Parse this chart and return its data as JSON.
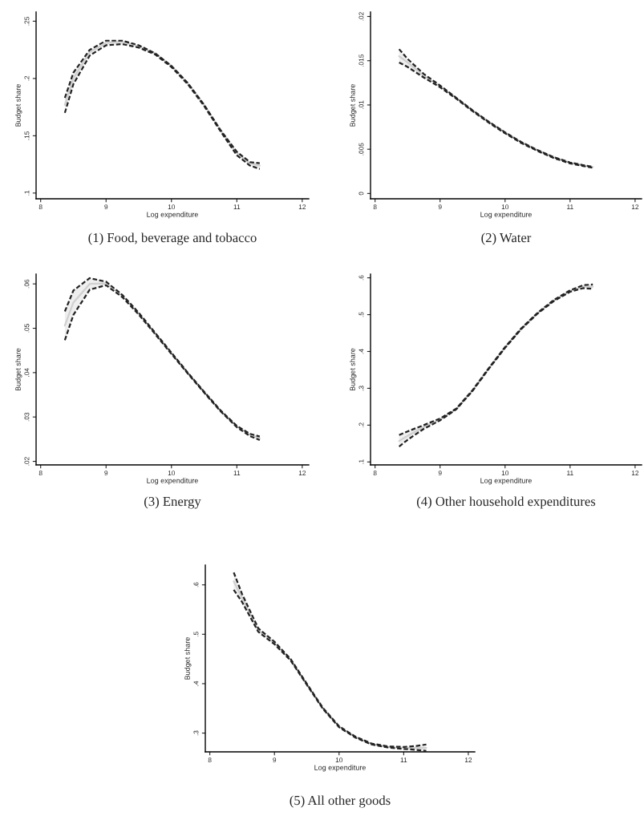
{
  "chart_data": [
    {
      "type": "line",
      "title": "(1) Food, beverage and tobacco",
      "xlabel": "Log expenditure",
      "ylabel": "Budget share",
      "xlim": [
        7.93,
        12.1
      ],
      "xticks": [
        8,
        9,
        10,
        11,
        12
      ],
      "ylim": [
        0.095,
        0.258
      ],
      "yticks": [
        {
          "value": 0.1,
          "label": ".1"
        },
        {
          "value": 0.15,
          "label": ".15"
        },
        {
          "value": 0.2,
          "label": ".2"
        },
        {
          "value": 0.25,
          "label": ".25"
        }
      ],
      "grid": false,
      "legend": false,
      "marker": "none",
      "x": [
        8.37,
        8.5,
        8.75,
        9,
        9.25,
        9.5,
        9.75,
        10,
        10.25,
        10.5,
        10.75,
        11,
        11.2,
        11.35
      ],
      "series": [
        {
          "color": "#d0d0d0",
          "line_style": "solid",
          "values": [
            0.177,
            0.2,
            0.223,
            0.231,
            0.232,
            0.228,
            0.222,
            0.211,
            0.196,
            0.177,
            0.155,
            0.135,
            0.126,
            0.124
          ],
          "lower": [
            0.17,
            0.195,
            0.22,
            0.229,
            0.23,
            0.227,
            0.221,
            0.21,
            0.195,
            0.176,
            0.154,
            0.133,
            0.124,
            0.121
          ],
          "upper": [
            0.183,
            0.205,
            0.225,
            0.233,
            0.233,
            0.229,
            0.222,
            0.211,
            0.196,
            0.177,
            0.155,
            0.136,
            0.127,
            0.126
          ]
        },
        {
          "color": "#222222",
          "line_style": "dashed",
          "values": [
            0.17,
            0.195,
            0.22,
            0.229,
            0.23,
            0.227,
            0.221,
            0.21,
            0.195,
            0.176,
            0.154,
            0.133,
            0.124,
            0.121
          ]
        },
        {
          "color": "#222222",
          "line_style": "dashed",
          "values": [
            0.183,
            0.205,
            0.225,
            0.233,
            0.233,
            0.229,
            0.222,
            0.211,
            0.196,
            0.177,
            0.155,
            0.136,
            0.127,
            0.126
          ]
        }
      ]
    },
    {
      "type": "line",
      "title": "(2) Water",
      "xlabel": "Log expenditure",
      "ylabel": "Budget share",
      "xlim": [
        7.93,
        12.1
      ],
      "xticks": [
        8,
        9,
        10,
        11,
        12
      ],
      "ylim": [
        -0.0006,
        0.0205
      ],
      "yticks": [
        0,
        {
          "value": 0.005,
          "label": ".005"
        },
        {
          "value": 0.01,
          "label": ".01"
        },
        {
          "value": 0.015,
          "label": ".015"
        },
        {
          "value": 0.02,
          "label": ".02"
        }
      ],
      "grid": false,
      "legend": false,
      "marker": "none",
      "x": [
        8.37,
        8.5,
        8.75,
        9,
        9.25,
        9.5,
        9.75,
        10,
        10.25,
        10.5,
        10.75,
        11,
        11.2,
        11.35
      ],
      "series": [
        {
          "color": "#d0d0d0",
          "line_style": "solid",
          "values": [
            0.0155,
            0.0148,
            0.0133,
            0.0121,
            0.0108,
            0.0094,
            0.0081,
            0.0069,
            0.0058,
            0.0049,
            0.0041,
            0.0035,
            0.0032,
            0.003
          ],
          "lower": [
            0.0148,
            0.0143,
            0.0131,
            0.012,
            0.0107,
            0.0093,
            0.008,
            0.0068,
            0.0057,
            0.0048,
            0.004,
            0.0034,
            0.0031,
            0.0029
          ],
          "upper": [
            0.0163,
            0.0152,
            0.0135,
            0.0122,
            0.0108,
            0.0094,
            0.0081,
            0.0069,
            0.0058,
            0.0049,
            0.0041,
            0.0035,
            0.0032,
            0.003
          ]
        },
        {
          "color": "#222222",
          "line_style": "dashed",
          "values": [
            0.0148,
            0.0143,
            0.0131,
            0.012,
            0.0107,
            0.0093,
            0.008,
            0.0068,
            0.0057,
            0.0048,
            0.004,
            0.0034,
            0.0031,
            0.0029
          ]
        },
        {
          "color": "#222222",
          "line_style": "dashed",
          "values": [
            0.0163,
            0.0152,
            0.0135,
            0.0122,
            0.0108,
            0.0094,
            0.0081,
            0.0069,
            0.0058,
            0.0049,
            0.0041,
            0.0035,
            0.0032,
            0.003
          ]
        }
      ]
    },
    {
      "type": "line",
      "title": "(3) Energy",
      "xlabel": "Log expenditure",
      "ylabel": "Budget share",
      "xlim": [
        7.93,
        12.1
      ],
      "xticks": [
        8,
        9,
        10,
        11,
        12
      ],
      "ylim": [
        0.0192,
        0.0622
      ],
      "yticks": [
        {
          "value": 0.02,
          "label": ".02"
        },
        {
          "value": 0.03,
          "label": ".03"
        },
        {
          "value": 0.04,
          "label": ".04"
        },
        {
          "value": 0.05,
          "label": ".05"
        },
        {
          "value": 0.06,
          "label": ".06"
        }
      ],
      "grid": false,
      "legend": false,
      "marker": "none",
      "x": [
        8.37,
        8.5,
        8.75,
        9,
        9.25,
        9.5,
        9.75,
        10,
        10.25,
        10.5,
        10.75,
        11,
        11.2,
        11.35
      ],
      "series": [
        {
          "color": "#d0d0d0",
          "line_style": "solid",
          "values": [
            0.0506,
            0.0558,
            0.06,
            0.0601,
            0.0573,
            0.0533,
            0.0489,
            0.0444,
            0.0399,
            0.0356,
            0.0314,
            0.0279,
            0.026,
            0.0252
          ],
          "lower": [
            0.0473,
            0.053,
            0.0587,
            0.0597,
            0.057,
            0.0531,
            0.0487,
            0.0442,
            0.0398,
            0.0355,
            0.0313,
            0.0277,
            0.0257,
            0.0248
          ],
          "upper": [
            0.0538,
            0.0585,
            0.0613,
            0.0605,
            0.0575,
            0.0535,
            0.049,
            0.0445,
            0.04,
            0.0357,
            0.0315,
            0.028,
            0.0262,
            0.0256
          ]
        },
        {
          "color": "#222222",
          "line_style": "dashed",
          "values": [
            0.0473,
            0.053,
            0.0587,
            0.0597,
            0.057,
            0.0531,
            0.0487,
            0.0442,
            0.0398,
            0.0355,
            0.0313,
            0.0277,
            0.0257,
            0.0248
          ]
        },
        {
          "color": "#222222",
          "line_style": "dashed",
          "values": [
            0.0538,
            0.0585,
            0.0613,
            0.0605,
            0.0575,
            0.0535,
            0.049,
            0.0445,
            0.04,
            0.0357,
            0.0315,
            0.028,
            0.0262,
            0.0256
          ]
        }
      ]
    },
    {
      "type": "line",
      "title": "(4) Other household expenditures",
      "xlabel": "Log expenditure",
      "ylabel": "Budget share",
      "xlim": [
        7.93,
        12.1
      ],
      "xticks": [
        8,
        9,
        10,
        11,
        12
      ],
      "ylim": [
        0.092,
        0.61
      ],
      "yticks": [
        {
          "value": 0.1,
          "label": ".1"
        },
        {
          "value": 0.2,
          "label": ".2"
        },
        {
          "value": 0.3,
          "label": ".3"
        },
        {
          "value": 0.4,
          "label": ".4"
        },
        {
          "value": 0.5,
          "label": ".5"
        },
        {
          "value": 0.6,
          "label": ".6"
        }
      ],
      "grid": false,
      "legend": false,
      "marker": "none",
      "x": [
        8.37,
        8.5,
        8.75,
        9,
        9.25,
        9.5,
        9.75,
        10,
        10.25,
        10.5,
        10.75,
        11,
        11.2,
        11.35
      ],
      "series": [
        {
          "color": "#d0d0d0",
          "line_style": "solid",
          "values": [
            0.157,
            0.171,
            0.195,
            0.215,
            0.244,
            0.294,
            0.354,
            0.411,
            0.462,
            0.504,
            0.538,
            0.564,
            0.576,
            0.576
          ],
          "lower": [
            0.142,
            0.16,
            0.19,
            0.213,
            0.243,
            0.293,
            0.353,
            0.41,
            0.461,
            0.503,
            0.537,
            0.562,
            0.572,
            0.57
          ],
          "upper": [
            0.173,
            0.183,
            0.2,
            0.218,
            0.245,
            0.295,
            0.355,
            0.412,
            0.463,
            0.505,
            0.54,
            0.566,
            0.58,
            0.582
          ]
        },
        {
          "color": "#222222",
          "line_style": "dashed",
          "values": [
            0.142,
            0.16,
            0.19,
            0.213,
            0.243,
            0.293,
            0.353,
            0.41,
            0.461,
            0.503,
            0.537,
            0.562,
            0.572,
            0.57
          ]
        },
        {
          "color": "#222222",
          "line_style": "dashed",
          "values": [
            0.173,
            0.183,
            0.2,
            0.218,
            0.245,
            0.295,
            0.355,
            0.412,
            0.463,
            0.505,
            0.54,
            0.566,
            0.58,
            0.582
          ]
        }
      ]
    },
    {
      "type": "line",
      "title": "(5) All other goods",
      "xlabel": "Log expenditure",
      "ylabel": "Budget share",
      "xlim": [
        7.93,
        12.1
      ],
      "xticks": [
        8,
        9,
        10,
        11,
        12
      ],
      "ylim": [
        0.262,
        0.64
      ],
      "yticks": [
        {
          "value": 0.3,
          "label": ".3"
        },
        {
          "value": 0.4,
          "label": ".4"
        },
        {
          "value": 0.5,
          "label": ".5"
        },
        {
          "value": 0.6,
          "label": ".6"
        }
      ],
      "grid": false,
      "legend": false,
      "marker": "none",
      "x": [
        8.37,
        8.5,
        8.75,
        9,
        9.25,
        9.5,
        9.75,
        10,
        10.25,
        10.5,
        10.75,
        11,
        11.2,
        11.35
      ],
      "series": [
        {
          "color": "#d0d0d0",
          "line_style": "solid",
          "values": [
            0.607,
            0.573,
            0.508,
            0.482,
            0.448,
            0.399,
            0.35,
            0.313,
            0.292,
            0.278,
            0.272,
            0.27,
            0.27,
            0.27
          ],
          "lower": [
            0.59,
            0.565,
            0.505,
            0.48,
            0.447,
            0.398,
            0.349,
            0.312,
            0.291,
            0.277,
            0.271,
            0.268,
            0.266,
            0.264
          ],
          "upper": [
            0.625,
            0.581,
            0.512,
            0.485,
            0.45,
            0.4,
            0.351,
            0.314,
            0.293,
            0.279,
            0.273,
            0.272,
            0.274,
            0.277
          ]
        },
        {
          "color": "#222222",
          "line_style": "dashed",
          "values": [
            0.59,
            0.565,
            0.505,
            0.48,
            0.447,
            0.398,
            0.349,
            0.312,
            0.291,
            0.277,
            0.271,
            0.268,
            0.266,
            0.264
          ]
        },
        {
          "color": "#222222",
          "line_style": "dashed",
          "values": [
            0.625,
            0.581,
            0.512,
            0.485,
            0.45,
            0.4,
            0.351,
            0.314,
            0.293,
            0.279,
            0.273,
            0.272,
            0.274,
            0.277
          ]
        }
      ]
    }
  ]
}
